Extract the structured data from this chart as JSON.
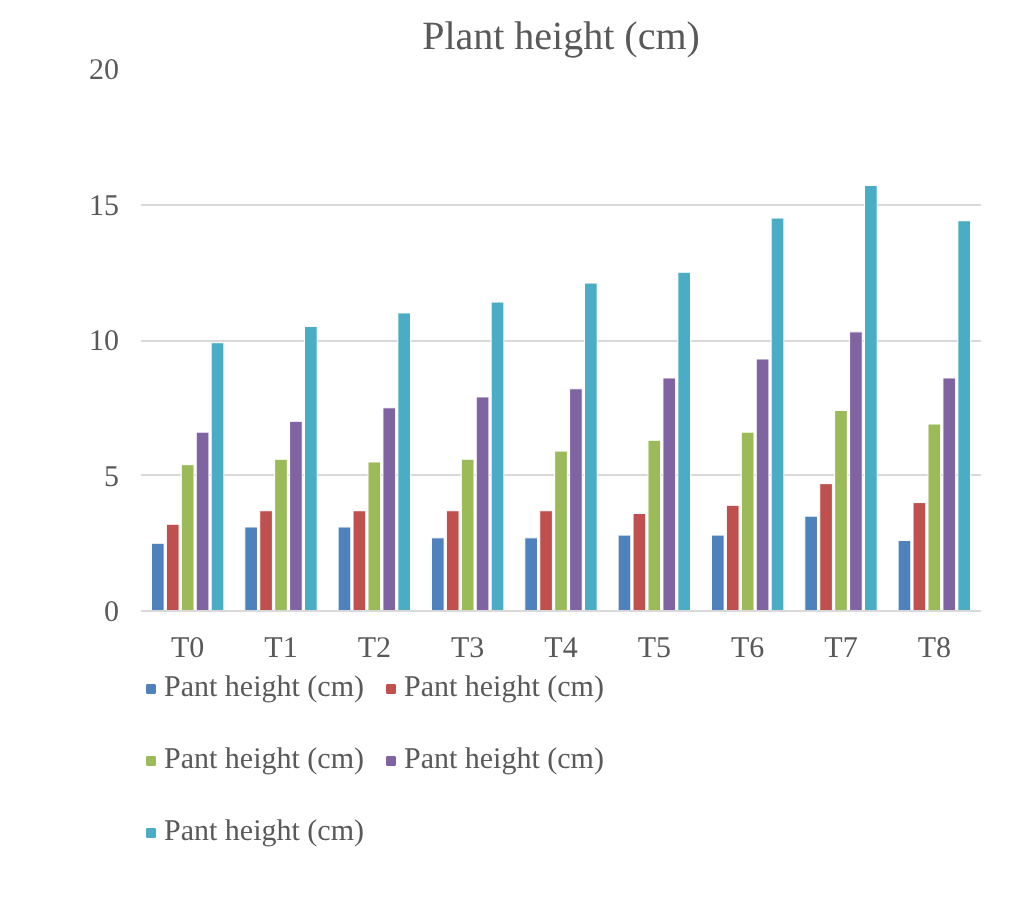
{
  "chart_data": {
    "type": "bar",
    "title": "Plant height (cm)",
    "categories": [
      "T0",
      "T1",
      "T2",
      "T3",
      "T4",
      "T5",
      "T6",
      "T7",
      "T8"
    ],
    "series": [
      {
        "name": "Pant height (cm)",
        "color": "#4f81bd",
        "values": [
          2.5,
          3.1,
          3.1,
          2.7,
          2.7,
          2.8,
          2.8,
          3.5,
          2.6
        ]
      },
      {
        "name": "Pant height (cm)",
        "color": "#c0504d",
        "values": [
          3.2,
          3.7,
          3.7,
          3.7,
          3.7,
          3.6,
          3.9,
          4.7,
          4.0
        ]
      },
      {
        "name": "Pant height (cm)",
        "color": "#9bbb59",
        "values": [
          5.4,
          5.6,
          5.5,
          5.6,
          5.9,
          6.3,
          6.6,
          7.4,
          6.9
        ]
      },
      {
        "name": "Pant height (cm)",
        "color": "#8064a2",
        "values": [
          6.6,
          7.0,
          7.5,
          7.9,
          8.2,
          8.6,
          9.3,
          10.3,
          8.6
        ]
      },
      {
        "name": "Pant height (cm)",
        "color": "#4bacc6",
        "values": [
          9.9,
          10.5,
          11.0,
          11.4,
          12.1,
          12.5,
          14.5,
          15.7,
          14.4
        ]
      }
    ],
    "ylim": [
      0,
      20
    ],
    "yticks": [
      0,
      5,
      10,
      15,
      20
    ],
    "grid": "y",
    "legend": "bottom"
  }
}
